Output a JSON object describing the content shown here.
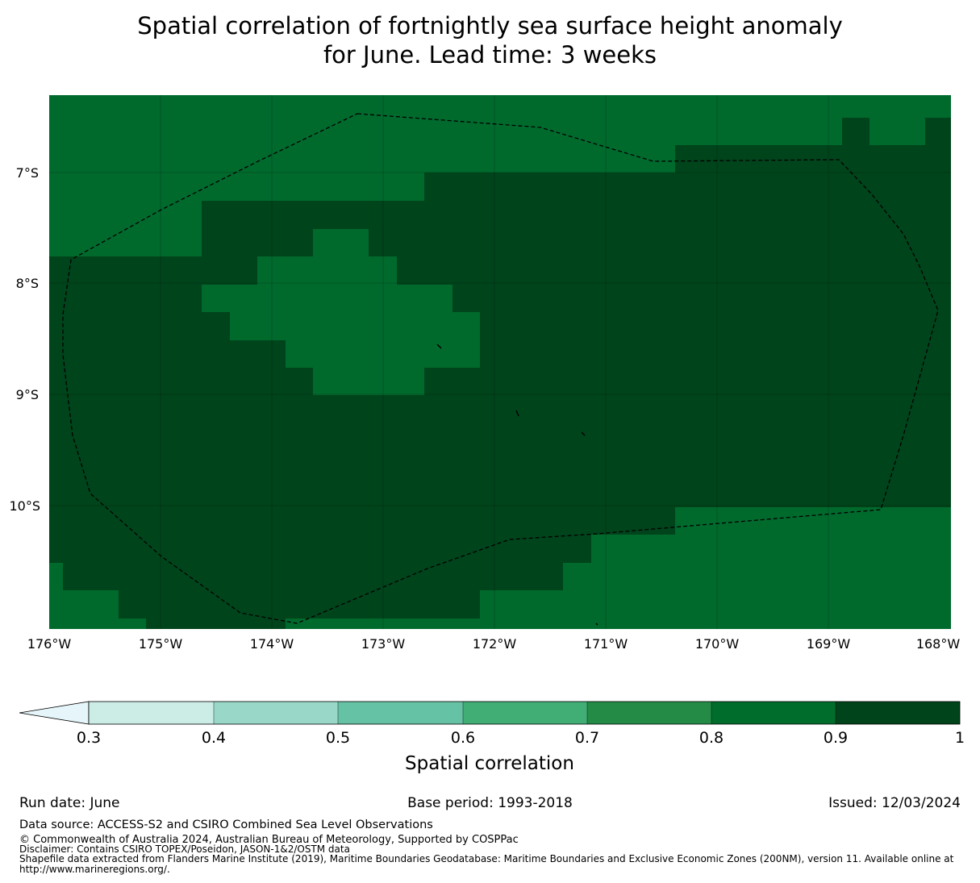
{
  "title": {
    "line1": "Spatial correlation of fortnightly sea surface height anomaly",
    "line2": "for June. Lead time: 3 weeks"
  },
  "map": {
    "lon_labels": [
      "176°W",
      "175°W",
      "174°W",
      "173°W",
      "172°W",
      "171°W",
      "170°W",
      "169°W",
      "168°W"
    ],
    "lat_labels": [
      "7°S",
      "8°S",
      "9°S",
      "10°S"
    ],
    "ocean_color_high": "#006a2d",
    "ocean_color_highest": "#00441b",
    "eez_line_color": "#000000"
  },
  "chart_data": {
    "type": "heatmap",
    "lon_range": [
      -176,
      -168
    ],
    "lat_range": [
      -11.2,
      -6.3
    ],
    "colorbar": {
      "label": "Spatial correlation",
      "ticks": [
        "0.3",
        "0.4",
        "0.5",
        "0.6",
        "0.7",
        "0.8",
        "0.9",
        "1"
      ],
      "bins": [
        {
          "range": [
            0.3,
            0.4
          ],
          "color": "#ccece6"
        },
        {
          "range": [
            0.4,
            0.5
          ],
          "color": "#99d8c9"
        },
        {
          "range": [
            0.5,
            0.6
          ],
          "color": "#66c2a4"
        },
        {
          "range": [
            0.6,
            0.7
          ],
          "color": "#41ae76"
        },
        {
          "range": [
            0.7,
            0.8
          ],
          "color": "#238b45"
        },
        {
          "range": [
            0.8,
            0.9
          ],
          "color": "#006d2c"
        },
        {
          "range": [
            0.9,
            1.0
          ],
          "color": "#00441b"
        }
      ],
      "extend_min_color": "#e5f5f9"
    }
  },
  "footer": {
    "run_date": "Run date: June",
    "base_period": "Base period: 1993-2018",
    "issued": "Issued: 12/03/2024",
    "data_source": "Data source: ACCESS-S2 and CSIRO Combined Sea Level Observations",
    "copyright": "© Commonwealth of Australia 2024, Australian Bureau of Meteorology, Supported by COSPPac",
    "disclaimer": "Disclaimer: Contains CSIRO TOPEX/Poseidon, JASON-1&2/OSTM data",
    "shapefile": "Shapefile data extracted from Flanders Marine Institute (2019), Maritime Boundaries Geodatabase: Maritime Boundaries and Exclusive Economic Zones (200NM), version 11. Available online at http://www.marineregions.org/."
  }
}
